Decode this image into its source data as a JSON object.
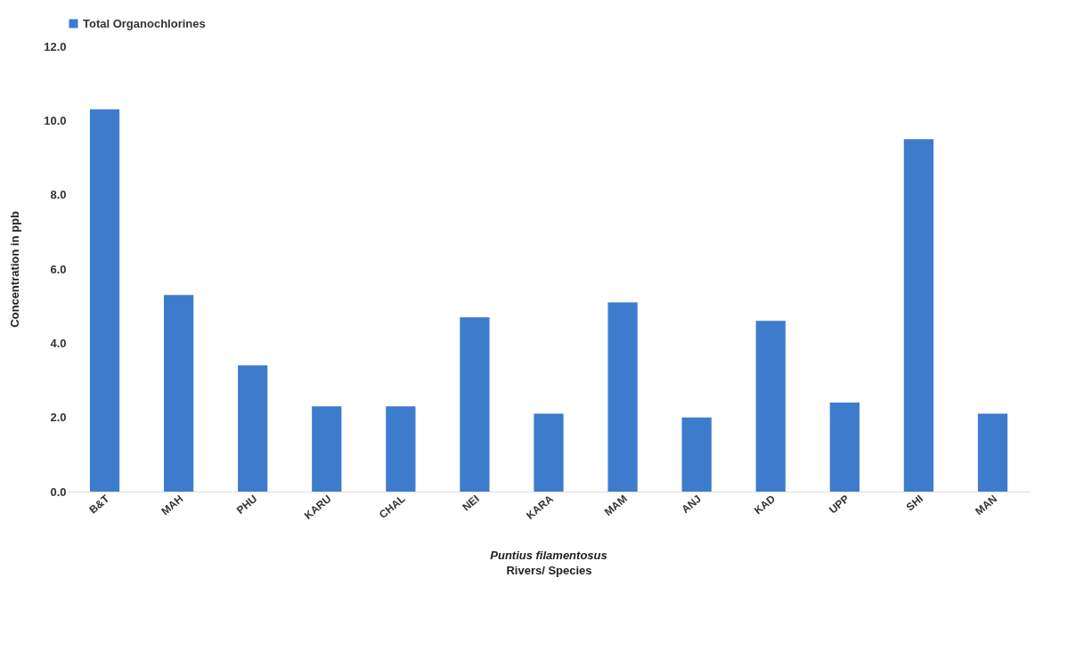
{
  "chart_data": {
    "type": "bar",
    "categories": [
      "B&T",
      "MAH",
      "PHU",
      "KARU",
      "CHAL",
      "NEI",
      "KARA",
      "MAM",
      "ANJ",
      "KAD",
      "UPP",
      "SHI",
      "MAN"
    ],
    "series": [
      {
        "name": "Total Organochlorines",
        "color": "#3d7ccc",
        "values": [
          10.3,
          5.3,
          3.4,
          2.3,
          2.3,
          4.7,
          2.1,
          5.1,
          2.0,
          4.6,
          2.4,
          9.5,
          2.1
        ]
      }
    ],
    "xlabel": "Rivers/ Species",
    "ylabel": "Concentration in ppb",
    "annotations": [
      "Puntius filamentosus"
    ],
    "ylim": [
      0,
      12
    ],
    "yticks": [
      {
        "value": 0,
        "label": "0.0"
      },
      {
        "value": 2,
        "label": "2.0"
      },
      {
        "value": 4,
        "label": "4.0"
      },
      {
        "value": 6,
        "label": "6.0"
      },
      {
        "value": 8,
        "label": "8.0"
      },
      {
        "value": 10,
        "label": "10.0"
      },
      {
        "value": 12,
        "label": "12.0"
      }
    ],
    "legend": "top"
  }
}
